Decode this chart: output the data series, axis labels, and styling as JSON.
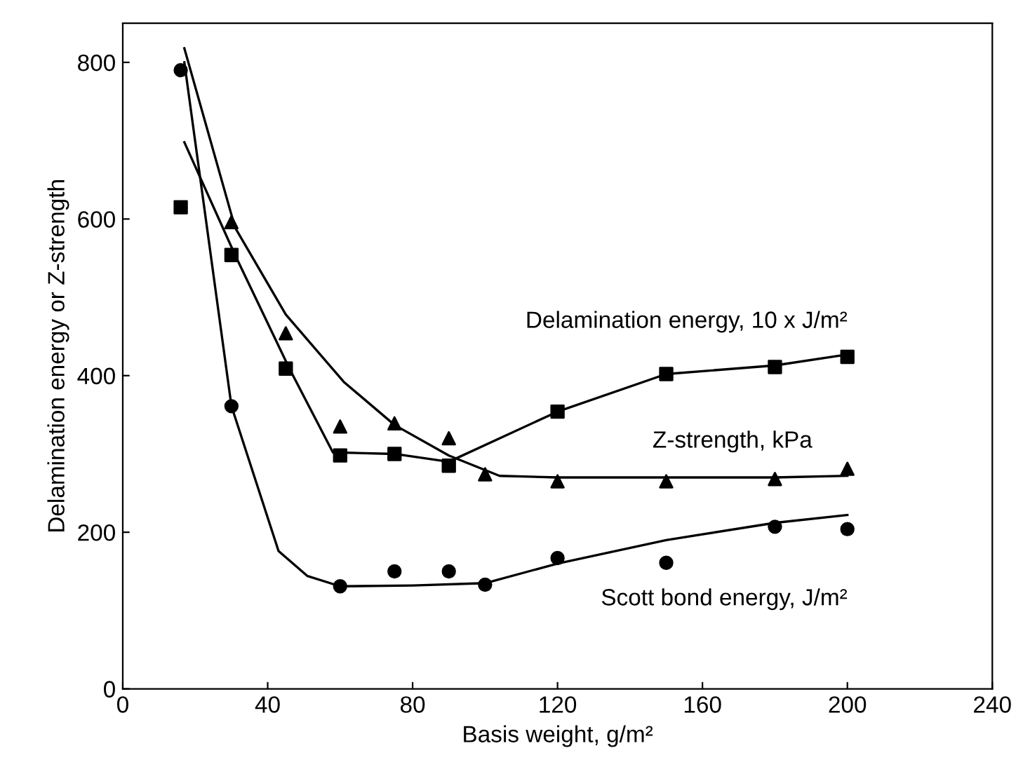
{
  "chart_data": {
    "type": "scatter",
    "xlabel": "Basis weight, g/m²",
    "ylabel": "Delamination energy or Z-strength",
    "xlim": [
      0,
      240
    ],
    "xticks": [
      0,
      40,
      80,
      120,
      160,
      200,
      240
    ],
    "ylim": [
      0,
      850
    ],
    "yticks": [
      0,
      200,
      400,
      600,
      800
    ],
    "grid": false,
    "legend": false,
    "series": [
      {
        "name": "Delamination energy, 10 x J/m²",
        "marker": "square",
        "color": "#000000",
        "x": [
          16,
          30,
          45,
          60,
          75,
          90,
          120,
          150,
          180,
          200
        ],
        "values": [
          615,
          554,
          409,
          298,
          300,
          285,
          354,
          402,
          411,
          424
        ]
      },
      {
        "name": "Z-strength, kPa",
        "marker": "triangle",
        "color": "#000000",
        "x": [
          30,
          45,
          60,
          75,
          90,
          100,
          120,
          150,
          180,
          200
        ],
        "values": [
          596,
          454,
          335,
          339,
          320,
          274,
          265,
          265,
          268,
          281
        ]
      },
      {
        "name": "Scott bond energy, J/m²",
        "marker": "circle",
        "color": "#000000",
        "x": [
          16,
          30,
          60,
          75,
          90,
          100,
          120,
          150,
          180,
          200
        ],
        "values": [
          790,
          361,
          131,
          150,
          150,
          133,
          167,
          161,
          207,
          204
        ]
      },
      {
        "type": "line",
        "color": "#000000",
        "x": [
          17,
          31,
          46,
          58,
          75,
          90,
          120,
          150,
          180,
          200
        ],
        "values": [
          698,
          554,
          409,
          302,
          300,
          290,
          354,
          402,
          413,
          427
        ]
      },
      {
        "type": "line",
        "color": "#000000",
        "x": [
          17,
          31,
          45,
          61,
          75,
          90,
          104,
          120,
          150,
          180,
          200
        ],
        "values": [
          818,
          589,
          478,
          392,
          337,
          298,
          272,
          270,
          270,
          270,
          272
        ]
      },
      {
        "type": "line",
        "color": "#000000",
        "x": [
          17,
          30,
          43,
          51,
          60,
          80,
          100,
          120,
          150,
          180,
          200
        ],
        "values": [
          800,
          361,
          176,
          144,
          131,
          132,
          135,
          160,
          190,
          212,
          222
        ]
      }
    ]
  }
}
